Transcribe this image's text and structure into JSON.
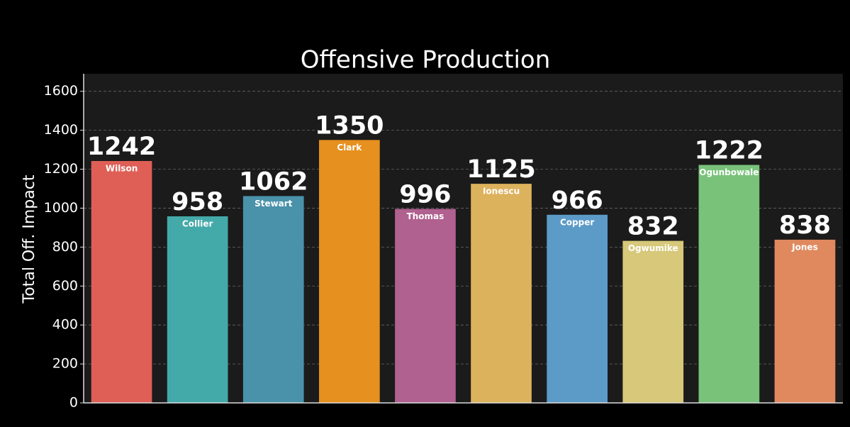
{
  "chart_data": {
    "type": "bar",
    "title": "Offensive Production",
    "y_label": "Total Off. Impact",
    "categories": [
      "Wilson",
      "Collier",
      "Stewart",
      "Clark",
      "Thomas",
      "Ionescu",
      "Copper",
      "Ogwumike",
      "Ogunbowale",
      "Jones"
    ],
    "values": [
      1242,
      958,
      1062,
      1350,
      996,
      1125,
      966,
      832,
      1222,
      838
    ],
    "colors": [
      "#df5f57",
      "#44a9a9",
      "#4a92aa",
      "#e6901f",
      "#b0618f",
      "#ddb25d",
      "#5c9bc8",
      "#d7c87a",
      "#79c27a",
      "#e0895f"
    ],
    "ylim": [
      0,
      1690
    ],
    "yticks": [
      0,
      200,
      400,
      600,
      800,
      1000,
      1200,
      1400,
      1600
    ],
    "grid": true
  }
}
